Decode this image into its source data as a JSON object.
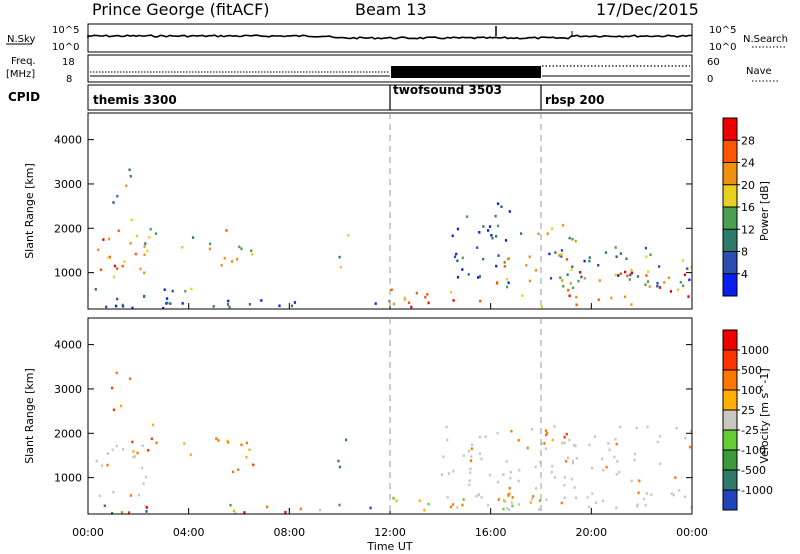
{
  "header": {
    "station": "Prince George (fitACF)",
    "beam": "Beam 13",
    "date": "17/Dec/2015"
  },
  "noise_panel": {
    "left_label": "N.Sky",
    "right_label": "N.Search",
    "left_ticks": [
      "10^5",
      "10^0"
    ],
    "right_ticks": [
      "10^5",
      "10^0"
    ]
  },
  "freq_panel": {
    "left_label_top": "Freq.",
    "left_label_bottom": "[MHz]",
    "right_label": "Nave",
    "left_ticks": [
      "18",
      "8"
    ],
    "right_ticks": [
      "60",
      "0"
    ]
  },
  "cpid_panel": {
    "label": "CPID",
    "segments": [
      {
        "name": "themis 3300",
        "start_hour": 0,
        "end_hour": 12
      },
      {
        "name": "twofsound 3503",
        "start_hour": 12,
        "end_hour": 18
      },
      {
        "name": "rbsp 200",
        "start_hour": 18,
        "end_hour": 24
      }
    ]
  },
  "chart_data": [
    {
      "type": "heatmap",
      "name": "power",
      "ylabel": "Slant Range [km]",
      "yticks": [
        1000,
        2000,
        3000,
        4000
      ],
      "ylim": [
        180,
        4600
      ],
      "xlim": [
        0,
        24
      ],
      "colorbar_label": "Power [dB]",
      "colorbar_ticks": [
        "4",
        "8",
        "12",
        "16",
        "20",
        "24",
        "28"
      ],
      "colors": [
        "#0a1ef0",
        "#2a4fb0",
        "#2e7a6a",
        "#4aa050",
        "#e8d020",
        "#f09010",
        "#ff5500",
        "#ee0000"
      ],
      "regions": [
        {
          "t0": 0.3,
          "t1": 2.4,
          "r0": 900,
          "r1": 2100,
          "level": 0.78
        },
        {
          "t0": 0.9,
          "t1": 1.7,
          "r0": 2400,
          "r1": 3400,
          "level": 0.4
        },
        {
          "t0": 1.5,
          "t1": 2.7,
          "r0": 1300,
          "r1": 2300,
          "level": 0.55
        },
        {
          "t0": 3.6,
          "t1": 4.3,
          "r0": 1450,
          "r1": 1850,
          "level": 0.35
        },
        {
          "t0": 4.8,
          "t1": 6.7,
          "r0": 1150,
          "r1": 2000,
          "level": 0.7
        },
        {
          "t0": 9.9,
          "t1": 10.5,
          "r0": 1150,
          "r1": 1900,
          "level": 0.4
        },
        {
          "t0": 0,
          "t1": 12,
          "r0": 200,
          "r1": 420,
          "level": 0.15
        },
        {
          "t0": 0.2,
          "t1": 4.2,
          "r0": 300,
          "r1": 750,
          "level": 0.3
        },
        {
          "t0": 12,
          "t1": 18,
          "r0": 250,
          "r1": 650,
          "level": 0.8
        },
        {
          "t0": 14.2,
          "t1": 16.8,
          "r0": 800,
          "r1": 2600,
          "level": 0.2
        },
        {
          "t0": 16.2,
          "t1": 19.5,
          "r0": 600,
          "r1": 1500,
          "level": 0.6
        },
        {
          "t0": 17.0,
          "t1": 19.4,
          "r0": 1700,
          "r1": 2200,
          "level": 0.55
        },
        {
          "t0": 18.2,
          "t1": 24,
          "r0": 700,
          "r1": 1650,
          "level": 0.3
        },
        {
          "t0": 19.0,
          "t1": 24,
          "r0": 300,
          "r1": 1100,
          "level": 0.82
        }
      ]
    },
    {
      "type": "heatmap",
      "name": "velocity",
      "ylabel": "Slant Range [km]",
      "yticks": [
        1000,
        2000,
        3000,
        4000
      ],
      "ylim": [
        180,
        4600
      ],
      "xlim": [
        0,
        24
      ],
      "xticks": [
        "00:00",
        "04:00",
        "08:00",
        "12:00",
        "16:00",
        "20:00",
        "00:00"
      ],
      "xlabel": "Time UT",
      "colorbar_label": "Velocity [m s^-1]",
      "colorbar_ticks": [
        "1000",
        "500",
        "100",
        "25",
        "-25",
        "-100",
        "-500",
        "-1000"
      ],
      "colors": [
        "#2244bb",
        "#2e7a6a",
        "#3c9a3c",
        "#66cc33",
        "#c8c8c0",
        "#ffb000",
        "#ff7700",
        "#ff3300",
        "#ee0000"
      ],
      "regions": [
        {
          "t0": 0.2,
          "t1": 2.3,
          "r0": 600,
          "r1": 1800,
          "kind": "gray"
        },
        {
          "t0": 0.9,
          "t1": 1.7,
          "r0": 2500,
          "r1": 3450,
          "kind": "red"
        },
        {
          "t0": 1.6,
          "t1": 2.7,
          "r0": 1400,
          "r1": 2300,
          "kind": "red"
        },
        {
          "t0": 3.6,
          "t1": 4.3,
          "r0": 1450,
          "r1": 1850,
          "kind": "red"
        },
        {
          "t0": 4.8,
          "t1": 6.7,
          "r0": 1150,
          "r1": 2000,
          "kind": "red"
        },
        {
          "t0": 9.9,
          "t1": 10.5,
          "r0": 1150,
          "r1": 1900,
          "kind": "green"
        },
        {
          "t0": 0,
          "t1": 12,
          "r0": 200,
          "r1": 420,
          "kind": "mix"
        },
        {
          "t0": 12,
          "t1": 18,
          "r0": 250,
          "r1": 650,
          "kind": "orange"
        },
        {
          "t0": 14.0,
          "t1": 24,
          "r0": 300,
          "r1": 2200,
          "kind": "gray"
        },
        {
          "t0": 17.0,
          "t1": 19.4,
          "r0": 1700,
          "r1": 2200,
          "kind": "red"
        }
      ]
    }
  ]
}
